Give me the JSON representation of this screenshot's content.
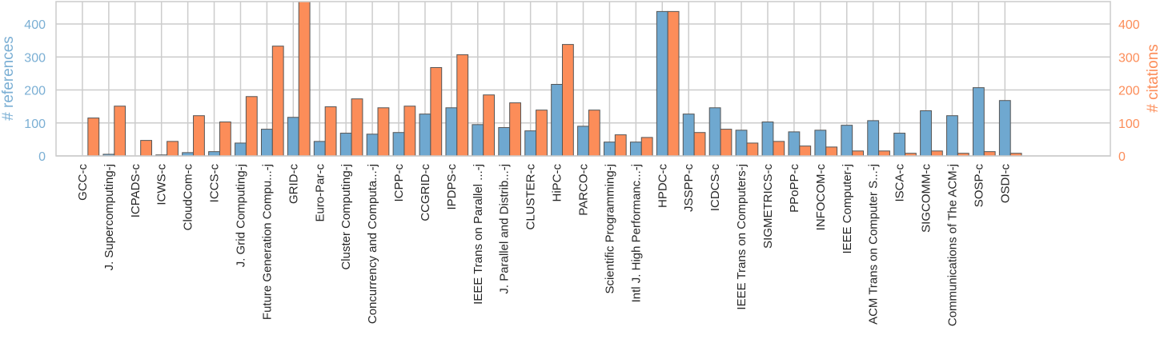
{
  "chart_data": {
    "type": "bar",
    "title": "",
    "xlabel": "",
    "ylabel": "# references",
    "y2label": "# citations",
    "ylim": [
      0,
      468
    ],
    "y2lim": [
      0,
      468
    ],
    "yticks": [
      0,
      100,
      200,
      300,
      400
    ],
    "y2ticks": [
      0,
      100,
      200,
      300,
      400
    ],
    "grid": true,
    "legend": "none",
    "colors": {
      "references": "#6fa8d0",
      "citations": "#fc8d59",
      "edge": "#555555",
      "grid": "#cccccc",
      "ylabel": "#7bafd4",
      "y2label": "#fc8d59"
    },
    "categories": [
      "GCC-c",
      "J. Supercomputing-j",
      "ICPADS-c",
      "ICWS-c",
      "CloudCom-c",
      "ICCS-c",
      "J. Grid Computing-j",
      "Future Generation Compu...-j",
      "GRID-c",
      "Euro-Par-c",
      "Cluster Computing-j",
      "Concurrency and Computa...-j",
      "ICPP-c",
      "CCGRID-c",
      "IPDPS-c",
      "IEEE Trans on Parallel ...-j",
      "J. Parallel and Distrib...-j",
      "CLUSTER-c",
      "HiPC-c",
      "PARCO-c",
      "Scientific Programming-j",
      "Intl J. High Performanc...-j",
      "HPDC-c",
      "JSSPP-c",
      "ICDCS-c",
      "IEEE Trans on Computers-j",
      "SIGMETRICS-c",
      "PPoPP-c",
      "INFOCOM-c",
      "IEEE Computer-j",
      "ACM Trans on Computer S...-j",
      "ISCA-c",
      "SIGCOMM-c",
      "Communications of The ACM-j",
      "SOSP-c",
      "OSDI-c"
    ],
    "series": [
      {
        "axis": "left",
        "values": [
          0,
          5,
          0,
          3,
          10,
          13,
          39,
          81,
          117,
          44,
          69,
          66,
          71,
          127,
          146,
          95,
          86,
          76,
          217,
          90,
          42,
          42,
          438,
          127,
          146,
          78,
          103,
          73,
          78,
          93,
          107,
          69,
          137,
          122,
          207,
          168
        ]
      },
      {
        "axis": "right",
        "values": [
          115,
          151,
          47,
          44,
          122,
          103,
          180,
          333,
          470,
          149,
          173,
          146,
          151,
          268,
          307,
          185,
          161,
          139,
          338,
          139,
          64,
          56,
          438,
          71,
          81,
          39,
          44,
          30,
          27,
          15,
          15,
          8,
          15,
          8,
          13,
          8
        ]
      }
    ]
  }
}
